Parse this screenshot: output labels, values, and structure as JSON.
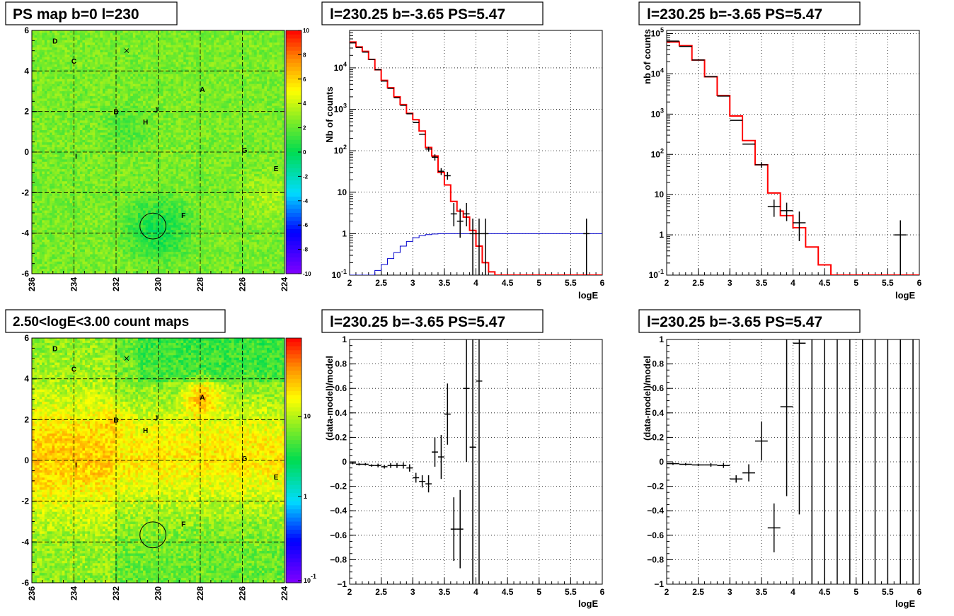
{
  "colors": {
    "data": "#000000",
    "model": "#ff0000",
    "efficiency": "#0000cc",
    "grid": "#000000"
  },
  "colormap": "rainbow (violet - blue - cyan - green - yellow - orange - red)",
  "panels": {
    "ps_map": {
      "title": "PS map b=0 l=230",
      "type": "heatmap",
      "xlim": [
        236,
        224
      ],
      "ylim": [
        -6,
        6
      ],
      "x_ticks": [
        "236",
        "234",
        "232",
        "230",
        "228",
        "226",
        "224"
      ],
      "y_ticks": [
        "-6",
        "-4",
        "-2",
        "0",
        "2",
        "4",
        "6"
      ],
      "colorbar": {
        "scale": "linear",
        "min": -10,
        "max": 10,
        "ticks": [
          "-10",
          "-8",
          "-6",
          "-4",
          "-2",
          "0",
          "2",
          "4",
          "6",
          "8",
          "10"
        ]
      },
      "sources": [
        {
          "label": "A",
          "x": 227.9,
          "y": 3.1
        },
        {
          "label": "B",
          "x": 232.0,
          "y": 2.0
        },
        {
          "label": "C",
          "x": 234.0,
          "y": 4.5
        },
        {
          "label": "D",
          "x": 234.9,
          "y": 5.5
        },
        {
          "label": "E",
          "x": 224.4,
          "y": -0.8
        },
        {
          "label": "F",
          "x": 228.8,
          "y": -3.1
        },
        {
          "label": "G",
          "x": 225.9,
          "y": 0.1
        },
        {
          "label": "H",
          "x": 230.6,
          "y": 1.5
        },
        {
          "label": "I",
          "x": 233.9,
          "y": -0.2
        },
        {
          "label": "J",
          "x": 230.1,
          "y": 2.1
        }
      ],
      "marker_x": {
        "x": 231.5,
        "y": 5.0
      },
      "circle": {
        "x": 230.25,
        "y": -3.65,
        "r": 0.55
      },
      "grid": true
    },
    "count_map": {
      "title": "2.50<logE<3.00 count maps",
      "type": "heatmap",
      "xlim": [
        236,
        224
      ],
      "ylim": [
        -6,
        6
      ],
      "x_ticks": [
        "236",
        "234",
        "232",
        "230",
        "228",
        "226",
        "224"
      ],
      "y_ticks": [
        "-6",
        "-4",
        "-2",
        "0",
        "2",
        "4",
        "6"
      ],
      "colorbar": {
        "scale": "log",
        "ticks": [
          "10^-1",
          "1",
          "10"
        ]
      },
      "sources": [
        {
          "label": "A",
          "x": 227.9,
          "y": 3.1
        },
        {
          "label": "B",
          "x": 232.0,
          "y": 2.0
        },
        {
          "label": "C",
          "x": 234.0,
          "y": 4.5
        },
        {
          "label": "D",
          "x": 234.9,
          "y": 5.5
        },
        {
          "label": "E",
          "x": 224.4,
          "y": -0.8
        },
        {
          "label": "F",
          "x": 228.8,
          "y": -3.1
        },
        {
          "label": "G",
          "x": 225.9,
          "y": 0.1
        },
        {
          "label": "H",
          "x": 230.6,
          "y": 1.5
        },
        {
          "label": "I",
          "x": 233.9,
          "y": -0.2
        },
        {
          "label": "J",
          "x": 230.1,
          "y": 2.1
        }
      ],
      "marker_x": {
        "x": 231.5,
        "y": 5.0
      },
      "circle": {
        "x": 230.25,
        "y": -3.65,
        "r": 0.55
      },
      "grid": true
    }
  },
  "chart_data": [
    {
      "id": "spec1",
      "type": "line",
      "title": "l=230.25 b=-3.65 PS=5.47",
      "xlabel": "logE",
      "ylabel": "Nb of counts",
      "xlim": [
        2,
        6
      ],
      "ylim": [
        0.1,
        80000
      ],
      "log_y": true,
      "x_ticks": [
        "2",
        "2.5",
        "3",
        "3.5",
        "4",
        "4.5",
        "5",
        "5.5",
        "6"
      ],
      "y_ticks": [
        "10^-1",
        "1",
        "10",
        "10^2",
        "10^3",
        "10^4"
      ],
      "grid": true,
      "model_step": {
        "edges": [
          2.0,
          2.1,
          2.2,
          2.3,
          2.4,
          2.5,
          2.6,
          2.7,
          2.8,
          2.9,
          3.0,
          3.1,
          3.2,
          3.3,
          3.4,
          3.5,
          3.6,
          3.7,
          3.8,
          3.9,
          4.0,
          4.1,
          4.2,
          4.3,
          6.0
        ],
        "values": [
          42000,
          32000,
          25000,
          16000,
          9000,
          5000,
          3300,
          2000,
          1300,
          800,
          560,
          300,
          120,
          75,
          30,
          15,
          6,
          3.5,
          2.5,
          1.2,
          0.5,
          0.2,
          0.12,
          0.1
        ]
      },
      "efficiency_step": {
        "edges": [
          2.0,
          2.1,
          2.2,
          2.3,
          2.4,
          2.5,
          2.6,
          2.7,
          2.8,
          2.9,
          3.0,
          3.1,
          3.2,
          3.3,
          3.4,
          3.5,
          6.0
        ],
        "values": [
          0.1,
          0.1,
          0.1,
          0.1,
          0.13,
          0.18,
          0.25,
          0.35,
          0.5,
          0.65,
          0.8,
          0.9,
          0.95,
          0.98,
          1.0,
          1.0
        ]
      },
      "data_points": [
        {
          "x": 2.05,
          "y": 40000,
          "ex": 0.05
        },
        {
          "x": 2.15,
          "y": 31000,
          "ex": 0.05
        },
        {
          "x": 2.25,
          "y": 24000,
          "ex": 0.05
        },
        {
          "x": 2.35,
          "y": 16000,
          "ex": 0.05
        },
        {
          "x": 2.45,
          "y": 9000,
          "ex": 0.05
        },
        {
          "x": 2.55,
          "y": 4800,
          "ex": 0.05
        },
        {
          "x": 2.65,
          "y": 3200,
          "ex": 0.05
        },
        {
          "x": 2.75,
          "y": 1900,
          "ex": 0.05
        },
        {
          "x": 2.85,
          "y": 1250,
          "ex": 0.05
        },
        {
          "x": 2.95,
          "y": 780,
          "ex": 0.05
        },
        {
          "x": 3.05,
          "y": 480,
          "ex": 0.05
        },
        {
          "x": 3.15,
          "y": 250,
          "ex": 0.05
        },
        {
          "x": 3.25,
          "y": 110,
          "ex": 0.05,
          "ylo": 95,
          "yhi": 125
        },
        {
          "x": 3.35,
          "y": 70,
          "ex": 0.05,
          "ylo": 58,
          "yhi": 82
        },
        {
          "x": 3.45,
          "y": 32,
          "ex": 0.05,
          "ylo": 26,
          "yhi": 38
        },
        {
          "x": 3.55,
          "y": 25,
          "ex": 0.05,
          "ylo": 20,
          "yhi": 31
        },
        {
          "x": 3.65,
          "y": 3,
          "ex": 0.05,
          "ylo": 1.5,
          "yhi": 5.5
        },
        {
          "x": 3.75,
          "y": 2,
          "ex": 0.05,
          "ylo": 0.8,
          "yhi": 4
        },
        {
          "x": 3.85,
          "y": 3,
          "ex": 0.05,
          "ylo": 1.5,
          "yhi": 5.5
        },
        {
          "x": 3.95,
          "y": 1,
          "ex": 0.05,
          "ylo": 0.1,
          "yhi": 2.3
        },
        {
          "x": 4.05,
          "y": 1,
          "ex": 0.05,
          "ylo": 0.1,
          "yhi": 2.3
        },
        {
          "x": 4.15,
          "y": 1,
          "ex": 0.05,
          "ylo": 0.1,
          "yhi": 2.3
        },
        {
          "x": 5.75,
          "y": 1,
          "ex": 0.05,
          "ylo": 0.1,
          "yhi": 2.3
        }
      ]
    },
    {
      "id": "spec2",
      "type": "line",
      "title": "l=230.25 b=-3.65 PS=5.47",
      "xlabel": "logE",
      "ylabel": "nb of counts",
      "xlim": [
        2,
        6
      ],
      "ylim": [
        0.1,
        120000
      ],
      "log_y": true,
      "x_ticks": [
        "2",
        "2.5",
        "3",
        "3.5",
        "4",
        "4.5",
        "5",
        "5.5",
        "6"
      ],
      "y_ticks": [
        "10^-1",
        "1",
        "10",
        "10^2",
        "10^3",
        "10^4",
        "10^5"
      ],
      "grid": true,
      "model_step": {
        "edges": [
          2.0,
          2.2,
          2.4,
          2.6,
          2.8,
          3.0,
          3.2,
          3.4,
          3.6,
          3.8,
          4.0,
          4.2,
          4.4,
          4.6,
          6.0
        ],
        "values": [
          62000,
          50000,
          22000,
          8500,
          2900,
          900,
          220,
          55,
          11,
          3,
          1.5,
          0.5,
          0.18,
          0.1
        ]
      },
      "data_points": [
        {
          "x": 2.1,
          "y": 65000,
          "ex": 0.1
        },
        {
          "x": 2.3,
          "y": 48000,
          "ex": 0.1
        },
        {
          "x": 2.5,
          "y": 22000,
          "ex": 0.1
        },
        {
          "x": 2.7,
          "y": 8500,
          "ex": 0.1
        },
        {
          "x": 2.9,
          "y": 2800,
          "ex": 0.1
        },
        {
          "x": 3.1,
          "y": 700,
          "ex": 0.1
        },
        {
          "x": 3.3,
          "y": 180,
          "ex": 0.1
        },
        {
          "x": 3.5,
          "y": 55,
          "ex": 0.1,
          "ylo": 46,
          "yhi": 64
        },
        {
          "x": 3.7,
          "y": 5,
          "ex": 0.1,
          "ylo": 2.8,
          "yhi": 7.5
        },
        {
          "x": 3.9,
          "y": 4,
          "ex": 0.1,
          "ylo": 2.2,
          "yhi": 6.3
        },
        {
          "x": 4.1,
          "y": 2,
          "ex": 0.1,
          "ylo": 0.7,
          "yhi": 3.8
        },
        {
          "x": 5.7,
          "y": 1,
          "ex": 0.1,
          "ylo": 0.1,
          "yhi": 2.3
        }
      ]
    },
    {
      "id": "resid1",
      "type": "scatter",
      "title": "l=230.25 b=-3.65 PS=5.47",
      "xlabel": "logE",
      "ylabel": "(data-model)/model",
      "xlim": [
        2,
        6
      ],
      "ylim": [
        -1,
        1
      ],
      "y_ticks": [
        "−1",
        "−0.8",
        "−0.6",
        "−0.4",
        "−0.2",
        "0",
        "0.2",
        "0.4",
        "0.6",
        "0.8",
        "1"
      ],
      "x_ticks": [
        "2",
        "2.5",
        "3",
        "3.5",
        "4",
        "4.5",
        "5",
        "5.5",
        "6"
      ],
      "grid": true,
      "data_points": [
        {
          "x": 2.05,
          "y": -0.01,
          "ex": 0.05,
          "ey": 0.01
        },
        {
          "x": 2.15,
          "y": -0.02,
          "ex": 0.05,
          "ey": 0.01
        },
        {
          "x": 2.25,
          "y": -0.02,
          "ex": 0.05,
          "ey": 0.01
        },
        {
          "x": 2.35,
          "y": -0.03,
          "ex": 0.05,
          "ey": 0.01
        },
        {
          "x": 2.45,
          "y": -0.03,
          "ex": 0.05,
          "ey": 0.015
        },
        {
          "x": 2.55,
          "y": -0.04,
          "ex": 0.05,
          "ey": 0.015
        },
        {
          "x": 2.65,
          "y": -0.03,
          "ex": 0.05,
          "ey": 0.02
        },
        {
          "x": 2.75,
          "y": -0.03,
          "ex": 0.05,
          "ey": 0.02
        },
        {
          "x": 2.85,
          "y": -0.03,
          "ex": 0.05,
          "ey": 0.025
        },
        {
          "x": 2.95,
          "y": -0.05,
          "ex": 0.05,
          "ey": 0.03
        },
        {
          "x": 3.05,
          "y": -0.13,
          "ex": 0.05,
          "ey": 0.04
        },
        {
          "x": 3.15,
          "y": -0.16,
          "ex": 0.05,
          "ey": 0.05
        },
        {
          "x": 3.25,
          "y": -0.18,
          "ex": 0.05,
          "ey": 0.07
        },
        {
          "x": 3.35,
          "y": 0.08,
          "ex": 0.05,
          "ey": 0.12
        },
        {
          "x": 3.45,
          "y": 0.04,
          "ex": 0.05,
          "ey": 0.18
        },
        {
          "x": 3.55,
          "y": 0.39,
          "ex": 0.05,
          "ey": 0.25
        },
        {
          "x": 3.65,
          "y": -0.55,
          "ex": 0.05,
          "ey": 0.26
        },
        {
          "x": 3.75,
          "y": -0.55,
          "ex": 0.05,
          "ey": 0.32
        },
        {
          "x": 3.85,
          "y": 0.6,
          "ex": 0.05,
          "ey": 0.6
        },
        {
          "x": 3.95,
          "y": 0.12,
          "ex": 0.05,
          "ey": 1.2
        },
        {
          "x": 4.05,
          "y": 0.66,
          "ex": 0.05,
          "ey": 1.8
        }
      ]
    },
    {
      "id": "resid2",
      "type": "scatter",
      "title": "l=230.25 b=-3.65 PS=5.47",
      "xlabel": "logE",
      "ylabel": "(data-model)/model",
      "xlim": [
        2,
        6
      ],
      "ylim": [
        -1,
        1
      ],
      "y_ticks": [
        "−1",
        "−0.8",
        "−0.6",
        "−0.4",
        "−0.2",
        "0",
        "0.2",
        "0.4",
        "0.6",
        "0.8",
        "1"
      ],
      "x_ticks": [
        "2",
        "2.5",
        "3",
        "3.5",
        "4",
        "4.5",
        "5",
        "5.5",
        "6"
      ],
      "grid": true,
      "data_points": [
        {
          "x": 2.1,
          "y": -0.015,
          "ex": 0.1,
          "ey": 0.01
        },
        {
          "x": 2.3,
          "y": -0.02,
          "ex": 0.1,
          "ey": 0.01
        },
        {
          "x": 2.5,
          "y": -0.025,
          "ex": 0.1,
          "ey": 0.01
        },
        {
          "x": 2.7,
          "y": -0.025,
          "ex": 0.1,
          "ey": 0.015
        },
        {
          "x": 2.9,
          "y": -0.03,
          "ex": 0.1,
          "ey": 0.02
        },
        {
          "x": 3.1,
          "y": -0.14,
          "ex": 0.1,
          "ey": 0.03
        },
        {
          "x": 3.3,
          "y": -0.09,
          "ex": 0.1,
          "ey": 0.07
        },
        {
          "x": 3.5,
          "y": 0.17,
          "ex": 0.1,
          "ey": 0.16
        },
        {
          "x": 3.7,
          "y": -0.54,
          "ex": 0.1,
          "ey": 0.2
        },
        {
          "x": 3.9,
          "y": 0.45,
          "ex": 0.1,
          "ey": 0.73
        },
        {
          "x": 4.1,
          "y": 0.97,
          "ex": 0.1,
          "ey": 1.4
        },
        {
          "x": 4.3,
          "y": 1.0,
          "ex": 0,
          "ey": 3
        },
        {
          "x": 4.5,
          "y": 1.0,
          "ex": 0,
          "ey": 3
        },
        {
          "x": 4.7,
          "y": 1.0,
          "ex": 0,
          "ey": 3
        },
        {
          "x": 4.9,
          "y": 1.0,
          "ex": 0,
          "ey": 3
        },
        {
          "x": 5.1,
          "y": 1.0,
          "ex": 0,
          "ey": 3
        },
        {
          "x": 5.3,
          "y": 1.0,
          "ex": 0,
          "ey": 3
        },
        {
          "x": 5.5,
          "y": 1.0,
          "ex": 0,
          "ey": 3
        },
        {
          "x": 5.7,
          "y": 1.0,
          "ex": 0,
          "ey": 3
        },
        {
          "x": 5.9,
          "y": 1.0,
          "ex": 0,
          "ey": 3
        }
      ]
    }
  ]
}
